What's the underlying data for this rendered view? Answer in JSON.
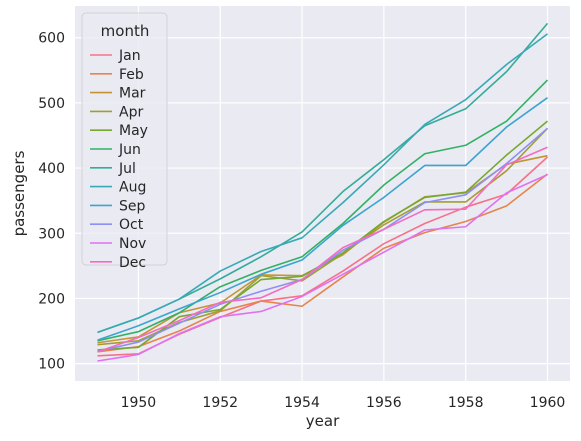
{
  "chart_data": {
    "type": "line",
    "xlabel": "year",
    "ylabel": "passengers",
    "xlim": [
      1948.45,
      1960.55
    ],
    "ylim": [
      73.3,
      648.7
    ],
    "x_ticks": [
      1950,
      1952,
      1954,
      1956,
      1958,
      1960
    ],
    "y_ticks": [
      100,
      200,
      300,
      400,
      500,
      600
    ],
    "grid": true,
    "background": "#eaeaf2",
    "legend": {
      "title": "month",
      "placement": "top-left"
    },
    "x": [
      1949,
      1950,
      1951,
      1952,
      1953,
      1954,
      1955,
      1956,
      1957,
      1958,
      1959,
      1960
    ],
    "series": [
      {
        "name": "Jan",
        "color": "#f77189",
        "values": [
          112,
          115,
          145,
          171,
          196,
          204,
          242,
          284,
          315,
          340,
          360,
          417
        ]
      },
      {
        "name": "Feb",
        "color": "#e7844a",
        "values": [
          118,
          126,
          150,
          180,
          196,
          188,
          233,
          277,
          301,
          318,
          342,
          391
        ]
      },
      {
        "name": "Mar",
        "color": "#c39532",
        "values": [
          132,
          141,
          178,
          193,
          236,
          235,
          267,
          317,
          356,
          362,
          406,
          419
        ]
      },
      {
        "name": "Apr",
        "color": "#a19f31",
        "values": [
          129,
          135,
          163,
          181,
          235,
          227,
          269,
          313,
          348,
          348,
          396,
          461
        ]
      },
      {
        "name": "May",
        "color": "#76a831",
        "values": [
          121,
          125,
          172,
          183,
          229,
          234,
          270,
          318,
          355,
          363,
          420,
          472
        ]
      },
      {
        "name": "Jun",
        "color": "#32b166",
        "values": [
          135,
          149,
          178,
          218,
          243,
          264,
          315,
          374,
          422,
          435,
          472,
          535
        ]
      },
      {
        "name": "Jul",
        "color": "#35ac99",
        "values": [
          148,
          170,
          199,
          230,
          264,
          302,
          364,
          413,
          465,
          491,
          548,
          622
        ]
      },
      {
        "name": "Aug",
        "color": "#38a9b6",
        "values": [
          148,
          170,
          199,
          242,
          272,
          293,
          347,
          405,
          467,
          505,
          559,
          606
        ]
      },
      {
        "name": "Sep",
        "color": "#3ba4d0",
        "values": [
          136,
          158,
          184,
          209,
          237,
          259,
          312,
          355,
          404,
          404,
          463,
          508
        ]
      },
      {
        "name": "Oct",
        "color": "#8e8ff4",
        "values": [
          119,
          133,
          162,
          191,
          211,
          229,
          274,
          306,
          347,
          359,
          407,
          461
        ]
      },
      {
        "name": "Nov",
        "color": "#e071f2",
        "values": [
          104,
          114,
          146,
          172,
          180,
          203,
          237,
          271,
          305,
          310,
          362,
          390
        ]
      },
      {
        "name": "Dec",
        "color": "#f66bc1",
        "values": [
          118,
          140,
          166,
          194,
          201,
          229,
          278,
          306,
          336,
          337,
          405,
          432
        ]
      }
    ]
  }
}
